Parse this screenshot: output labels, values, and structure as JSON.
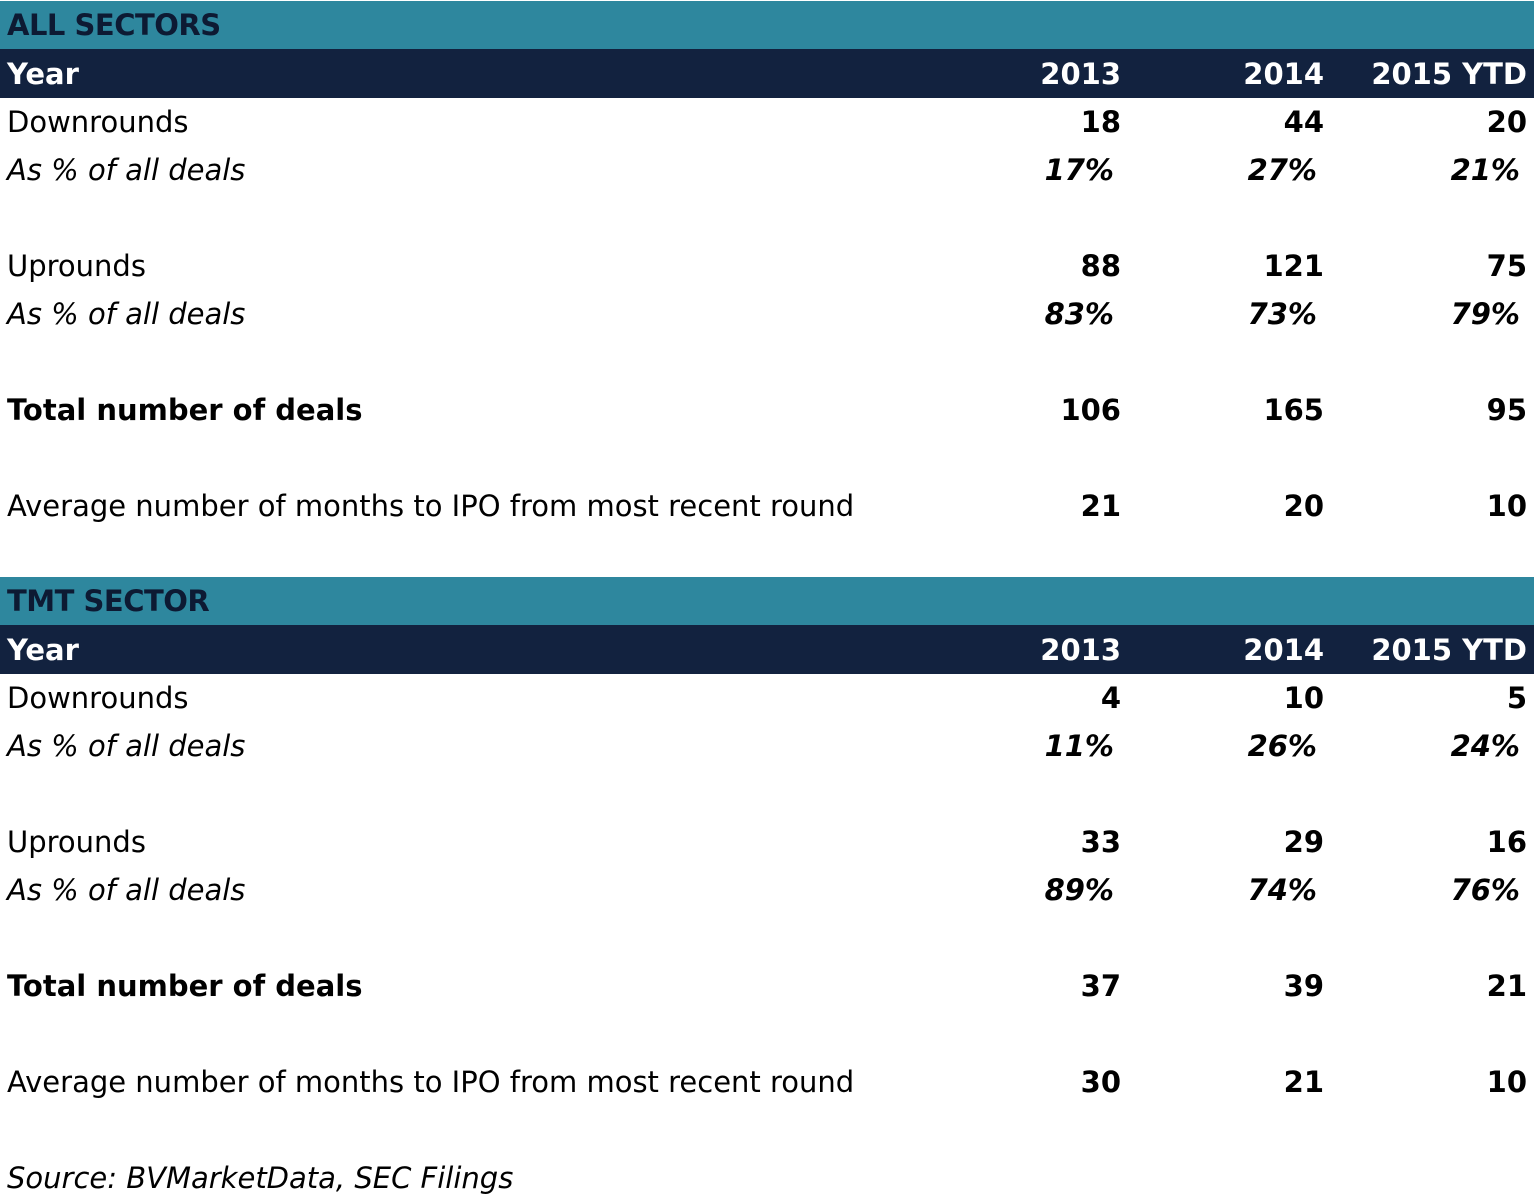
{
  "chart_data": [
    {
      "type": "table",
      "title": "ALL SECTORS",
      "columns": [
        "Year",
        "2013",
        "2014",
        "2015 YTD"
      ],
      "rows": [
        {
          "label": "Downrounds",
          "values": [
            "18",
            "44",
            "20"
          ]
        },
        {
          "label": "As % of all deals",
          "values": [
            "17%",
            "27%",
            "21%"
          ]
        },
        {
          "label": "Uprounds",
          "values": [
            "88",
            "121",
            "75"
          ]
        },
        {
          "label": "As % of all deals",
          "values": [
            "83%",
            "73%",
            "79%"
          ]
        },
        {
          "label": "Total number of deals",
          "values": [
            "106",
            "165",
            "95"
          ]
        },
        {
          "label": "Average number of months to IPO from most recent round",
          "values": [
            "21",
            "20",
            "10"
          ]
        }
      ]
    },
    {
      "type": "table",
      "title": "TMT SECTOR",
      "columns": [
        "Year",
        "2013",
        "2014",
        "2015 YTD"
      ],
      "rows": [
        {
          "label": "Downrounds",
          "values": [
            "4",
            "10",
            "5"
          ]
        },
        {
          "label": "As % of all deals",
          "values": [
            "11%",
            "26%",
            "24%"
          ]
        },
        {
          "label": "Uprounds",
          "values": [
            "33",
            "29",
            "16"
          ]
        },
        {
          "label": "As % of all deals",
          "values": [
            "89%",
            "74%",
            "76%"
          ]
        },
        {
          "label": "Total number of deals",
          "values": [
            "37",
            "39",
            "21"
          ]
        },
        {
          "label": "Average number of months to IPO from most recent round",
          "values": [
            "30",
            "21",
            "10"
          ]
        }
      ]
    }
  ],
  "source": "Source: BVMarketData, SEC Filings",
  "colors": {
    "sector_bar": "#2e879e",
    "year_bar": "#12223f"
  }
}
